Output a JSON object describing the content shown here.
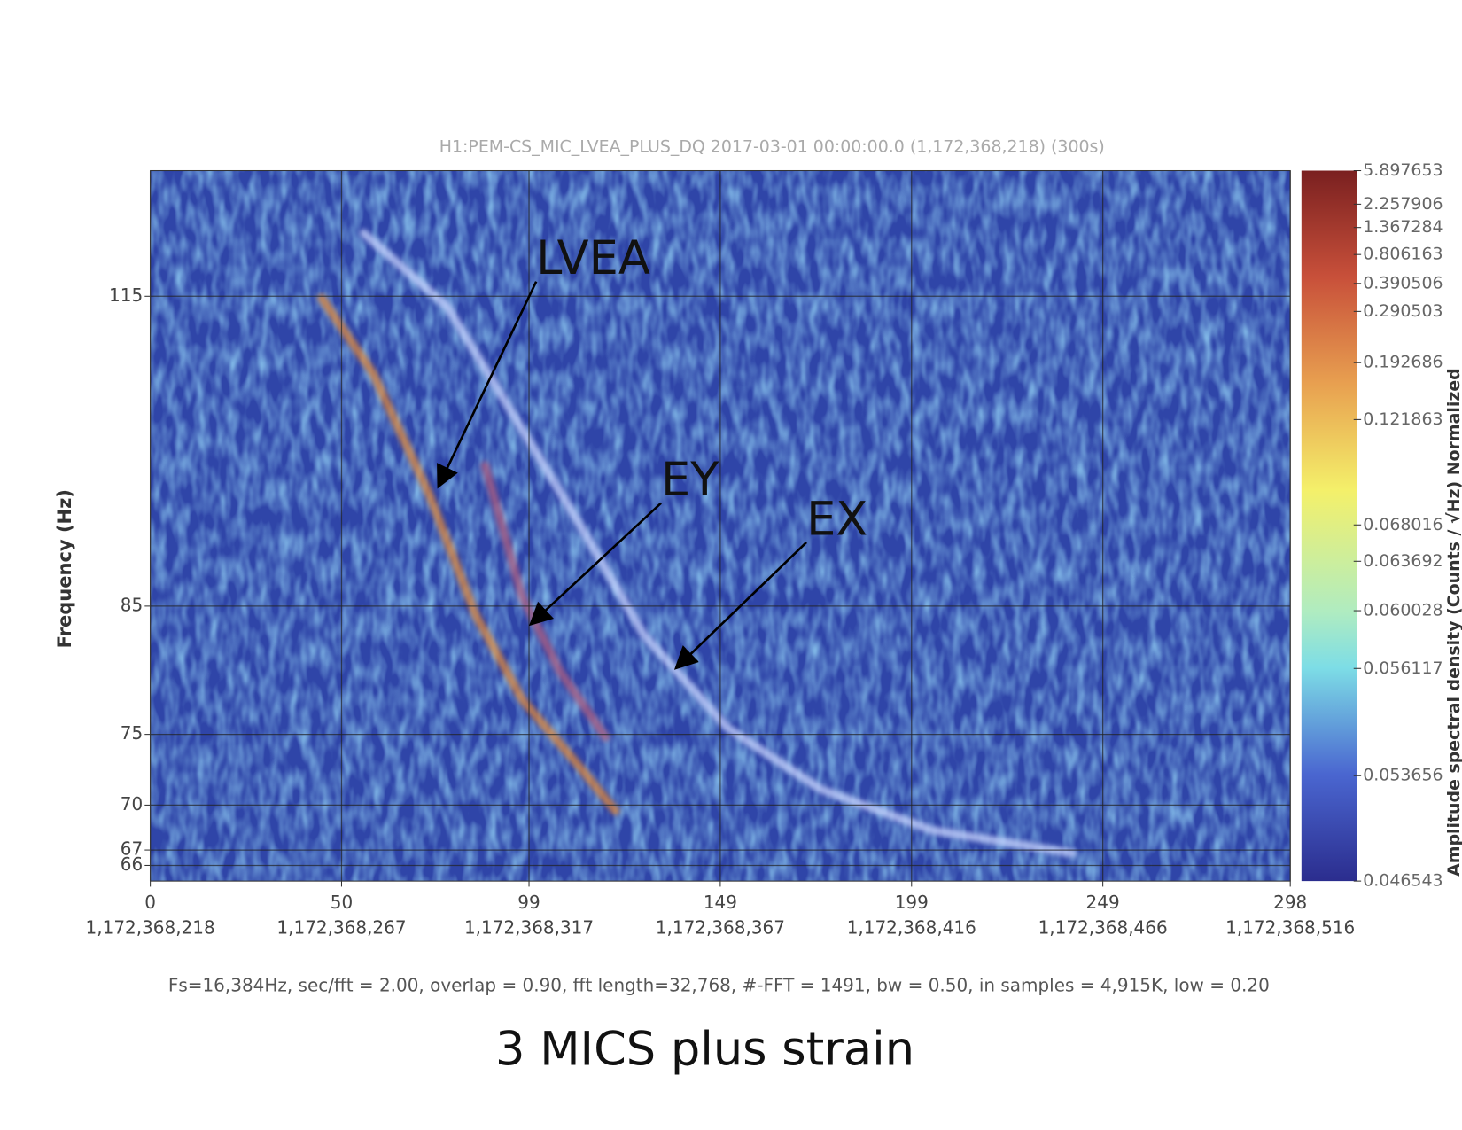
{
  "chart_data": {
    "type": "spectrogram",
    "title": "H1:PEM-CS_MIC_LVEA_PLUS_DQ 2017-03-01 00:00:00.0 (1,172,368,218) (300s)",
    "ylabel": "Frequency (Hz)",
    "y_scale": "log",
    "xlim": [
      0,
      298
    ],
    "ylim": [
      65,
      130
    ],
    "xticks": [
      0,
      50,
      99,
      149,
      199,
      249,
      298
    ],
    "xtick_times": [
      "1,172,368,218",
      "1,172,368,267",
      "1,172,368,317",
      "1,172,368,367",
      "1,172,368,416",
      "1,172,368,466",
      "1,172,368,516"
    ],
    "yticks": [
      66,
      67,
      70,
      75,
      85,
      115
    ],
    "grid": true,
    "series": [
      {
        "color": "#e08a3a",
        "x": [
          44.8,
          58.2,
          72.9,
          85,
          97.2,
          111.8,
          121.6
        ],
        "values": [
          114.8,
          106.7,
          94.8,
          84.3,
          77.6,
          72.8,
          69.6
        ]
      },
      {
        "color": "#b06080",
        "x": [
          87.5,
          97.2,
          107,
          119
        ],
        "values": [
          97.5,
          85.8,
          79.8,
          74.8
        ]
      },
      {
        "color": "#c9d6ff",
        "x": [
          55.8,
          77.7,
          97.2,
          111.8,
          128.9,
          150.8,
          175.2,
          204.4,
          241
        ],
        "values": [
          122.3,
          113.8,
          101,
          92.3,
          82.7,
          75.5,
          71.1,
          68.3,
          66.8
        ]
      }
    ],
    "annotations": [
      {
        "text": "LVEA",
        "x": 75.3,
        "y": 95.5
      },
      {
        "text": "EY",
        "x": 99.4,
        "y": 83.5
      },
      {
        "text": "EX",
        "x": 137.4,
        "y": 80
      }
    ],
    "colorbar": {
      "label": "Amplitude spectral density (Counts / √Hz) Normalized",
      "ticks": [
        5.897653,
        2.257906,
        1.367284,
        0.806163,
        0.390506,
        0.290503,
        0.192686,
        0.121863,
        0.068016,
        0.063692,
        0.060028,
        0.056117,
        0.053656,
        0.046543
      ]
    }
  },
  "footer": "Fs=16,384Hz, sec/fft = 2.00, overlap = 0.90, fft length=32,768, #-FFT = 1491, bw = 0.50, in samples = 4,915K, low = 0.20",
  "caption": "3 MICS plus strain"
}
